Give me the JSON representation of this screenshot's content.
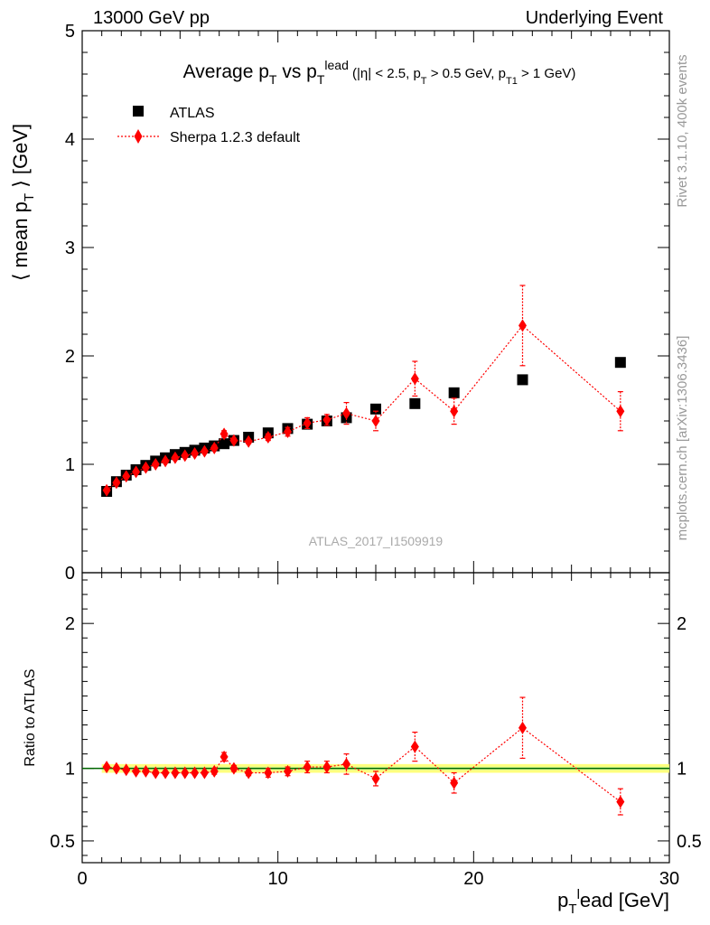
{
  "header": {
    "left": "13000 GeV pp",
    "right": "Underlying Event"
  },
  "side_labels": {
    "rivet": "Rivet 3.1.10,  400k events",
    "mcplots": "mcplots.cern.ch [arXiv:1306.3436]"
  },
  "analysis_id": "ATLAS_2017_I1509919",
  "colors": {
    "data": "#000000",
    "mc": "#ff0000",
    "band": "#ffff66",
    "ref_line": "#006600"
  },
  "chart_data": [
    {
      "type": "scatter",
      "title": {
        "main": "Average p",
        "main_sub": "T",
        "vs": "vs p",
        "vs_sub": "T",
        "vs_sup": "lead",
        "cuts": "(|η| < 2.5, p",
        "cuts_sub1": "T",
        "cuts_mid": "> 0.5 GeV, p",
        "cuts_sub2": "T1",
        "cuts_end": "> 1 GeV)"
      },
      "ylabel": {
        "pre": "⟨ mean p",
        "sub": "T",
        "post": "⟩ [GeV]"
      },
      "xlim": [
        0,
        30
      ],
      "ylim": [
        0,
        5
      ],
      "yticks": [
        0,
        1,
        2,
        3,
        4,
        5
      ],
      "legend": {
        "placement": "top-left"
      },
      "series": [
        {
          "name": "ATLAS",
          "marker": "square",
          "x": [
            1.25,
            1.75,
            2.25,
            2.75,
            3.25,
            3.75,
            4.25,
            4.75,
            5.25,
            5.75,
            6.25,
            6.75,
            7.25,
            7.75,
            8.5,
            9.5,
            10.5,
            11.5,
            12.5,
            13.5,
            15.0,
            17.0,
            19.0,
            22.5,
            27.5
          ],
          "y": [
            0.75,
            0.84,
            0.9,
            0.95,
            0.99,
            1.03,
            1.06,
            1.09,
            1.11,
            1.13,
            1.15,
            1.17,
            1.19,
            1.22,
            1.25,
            1.29,
            1.33,
            1.37,
            1.4,
            1.43,
            1.51,
            1.56,
            1.66,
            1.78,
            1.94
          ]
        },
        {
          "name": "Sherpa 1.2.3 default",
          "marker": "diamond",
          "line": "dotted",
          "x": [
            1.25,
            1.75,
            2.25,
            2.75,
            3.25,
            3.75,
            4.25,
            4.75,
            5.25,
            5.75,
            6.25,
            6.75,
            7.25,
            7.75,
            8.5,
            9.5,
            10.5,
            11.5,
            12.5,
            13.5,
            15.0,
            17.0,
            19.0,
            22.5,
            27.5
          ],
          "y": [
            0.76,
            0.83,
            0.89,
            0.93,
            0.97,
            1.0,
            1.03,
            1.06,
            1.08,
            1.1,
            1.12,
            1.15,
            1.28,
            1.22,
            1.21,
            1.25,
            1.3,
            1.38,
            1.41,
            1.47,
            1.4,
            1.79,
            1.49,
            2.28,
            1.49
          ],
          "yerr": [
            0.01,
            0.01,
            0.01,
            0.01,
            0.01,
            0.01,
            0.01,
            0.01,
            0.01,
            0.01,
            0.01,
            0.02,
            0.03,
            0.02,
            0.02,
            0.03,
            0.04,
            0.05,
            0.05,
            0.1,
            0.09,
            0.16,
            0.12,
            0.37,
            0.18
          ]
        }
      ]
    },
    {
      "type": "scatter",
      "ylabel": "Ratio to ATLAS",
      "xlabel": {
        "main": "p",
        "sub": "T",
        "sup": "l",
        "rest": "ead [GeV]"
      },
      "xlim": [
        0,
        30
      ],
      "ylim": [
        0.35,
        2.35
      ],
      "yticks": [
        0.5,
        1,
        2
      ],
      "ytick_labels": [
        "0.5",
        "1",
        "2"
      ],
      "xticks": [
        0,
        10,
        20,
        30
      ],
      "xtick_labels": [
        "0",
        "10",
        "20",
        "30"
      ],
      "reference": 1.0,
      "band_halfwidth": 0.03,
      "series": [
        {
          "name": "Sherpa 1.2.3 default",
          "x": [
            1.25,
            1.75,
            2.25,
            2.75,
            3.25,
            3.75,
            4.25,
            4.75,
            5.25,
            5.75,
            6.25,
            6.75,
            7.25,
            7.75,
            8.5,
            9.5,
            10.5,
            11.5,
            12.5,
            13.5,
            15.0,
            17.0,
            19.0,
            22.5,
            27.5
          ],
          "y": [
            1.01,
            1.0,
            0.99,
            0.98,
            0.98,
            0.97,
            0.97,
            0.97,
            0.97,
            0.97,
            0.97,
            0.98,
            1.08,
            1.0,
            0.97,
            0.97,
            0.98,
            1.01,
            1.01,
            1.03,
            0.93,
            1.15,
            0.9,
            1.28,
            0.77
          ],
          "yerr": [
            0.01,
            0.01,
            0.01,
            0.01,
            0.01,
            0.01,
            0.01,
            0.01,
            0.01,
            0.01,
            0.01,
            0.02,
            0.03,
            0.02,
            0.02,
            0.03,
            0.03,
            0.04,
            0.04,
            0.07,
            0.05,
            0.1,
            0.07,
            0.21,
            0.09
          ]
        }
      ]
    }
  ]
}
